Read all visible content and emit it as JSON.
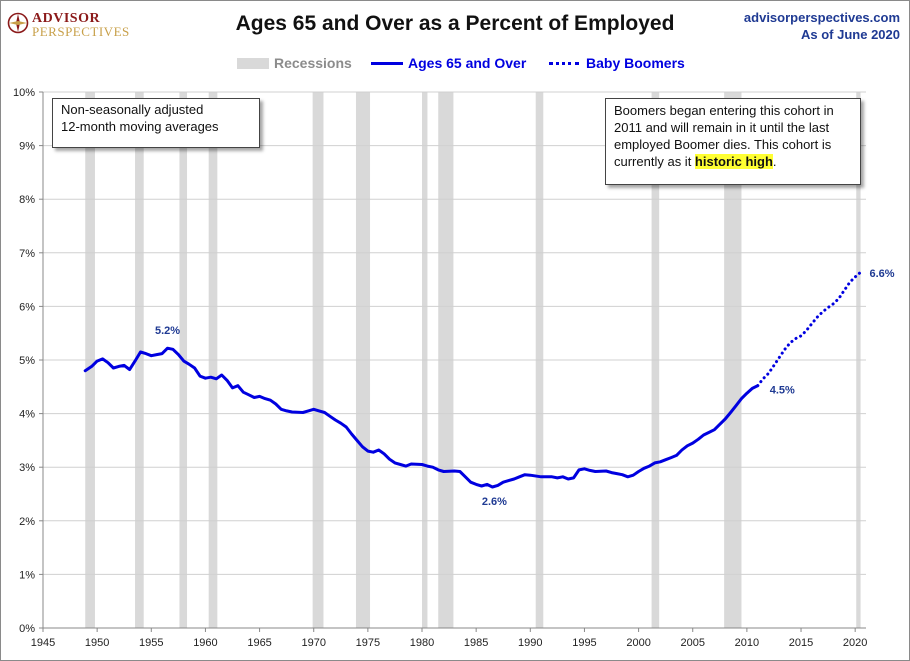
{
  "header": {
    "logo_top": "ADVISOR",
    "logo_bottom": "PERSPECTIVES",
    "title": "Ages 65 and Over as a Percent of Employed",
    "site": "advisorperspectives.com",
    "as_of": "As of June 2020"
  },
  "legend": {
    "recessions": "Recessions",
    "series_main": "Ages 65 and Over",
    "series_boomers": "Baby Boomers"
  },
  "notes": {
    "left_line1": "Non-seasonally adjusted",
    "left_line2": "12-month moving averages",
    "right_line1": "Boomers began entering this cohort in",
    "right_line2": "2011  and will remain in it until the last",
    "right_line3": "employed Boomer dies. This cohort is",
    "right_line4_prefix": "currently as it ",
    "right_line4_highlight": "historic high",
    "right_line4_suffix": "."
  },
  "colors": {
    "series": "#0000e0",
    "recession": "#d9d9d9",
    "grid": "#d0d0d0",
    "highlight": "#ffff33",
    "label": "#1f3a93"
  },
  "chart_data": {
    "type": "line",
    "xlim": [
      1945,
      2021
    ],
    "ylim": [
      0,
      10
    ],
    "x_ticks": [
      1945,
      1950,
      1955,
      1960,
      1965,
      1970,
      1975,
      1980,
      1985,
      1990,
      1995,
      2000,
      2005,
      2010,
      2015,
      2020
    ],
    "y_ticks": [
      "0%",
      "1%",
      "2%",
      "3%",
      "4%",
      "5%",
      "6%",
      "7%",
      "8%",
      "9%",
      "10%"
    ],
    "grid": true,
    "legend_position": "top-center",
    "recessions": [
      [
        1948.9,
        1949.8
      ],
      [
        1953.5,
        1954.3
      ],
      [
        1957.6,
        1958.3
      ],
      [
        1960.3,
        1961.1
      ],
      [
        1969.9,
        1970.9
      ],
      [
        1973.9,
        1975.2
      ],
      [
        1980.0,
        1980.5
      ],
      [
        1981.5,
        1982.9
      ],
      [
        1990.5,
        1991.2
      ],
      [
        2001.2,
        2001.9
      ],
      [
        2007.9,
        2009.5
      ],
      [
        2020.1,
        2020.5
      ]
    ],
    "series": [
      {
        "name": "Ages 65 and Over",
        "style": "solid",
        "points": [
          [
            1948.9,
            4.8
          ],
          [
            1949.5,
            4.88
          ],
          [
            1950.0,
            4.98
          ],
          [
            1950.5,
            5.02
          ],
          [
            1951.0,
            4.95
          ],
          [
            1951.5,
            4.85
          ],
          [
            1952.0,
            4.88
          ],
          [
            1952.5,
            4.9
          ],
          [
            1953.0,
            4.82
          ],
          [
            1953.5,
            4.98
          ],
          [
            1954.0,
            5.15
          ],
          [
            1954.5,
            5.12
          ],
          [
            1955.0,
            5.08
          ],
          [
            1955.5,
            5.1
          ],
          [
            1956.0,
            5.12
          ],
          [
            1956.5,
            5.22
          ],
          [
            1957.0,
            5.2
          ],
          [
            1957.5,
            5.1
          ],
          [
            1958.0,
            4.98
          ],
          [
            1958.5,
            4.92
          ],
          [
            1959.0,
            4.85
          ],
          [
            1959.5,
            4.7
          ],
          [
            1960.0,
            4.66
          ],
          [
            1960.5,
            4.68
          ],
          [
            1961.0,
            4.65
          ],
          [
            1961.5,
            4.72
          ],
          [
            1962.0,
            4.62
          ],
          [
            1962.5,
            4.48
          ],
          [
            1963.0,
            4.52
          ],
          [
            1963.5,
            4.4
          ],
          [
            1964.0,
            4.35
          ],
          [
            1964.5,
            4.3
          ],
          [
            1965.0,
            4.32
          ],
          [
            1965.5,
            4.28
          ],
          [
            1966.0,
            4.25
          ],
          [
            1966.5,
            4.18
          ],
          [
            1967.0,
            4.08
          ],
          [
            1967.5,
            4.05
          ],
          [
            1968.0,
            4.03
          ],
          [
            1969.0,
            4.02
          ],
          [
            1969.5,
            4.05
          ],
          [
            1970.0,
            4.08
          ],
          [
            1970.5,
            4.05
          ],
          [
            1971.0,
            4.02
          ],
          [
            1971.5,
            3.95
          ],
          [
            1972.0,
            3.88
          ],
          [
            1972.5,
            3.82
          ],
          [
            1973.0,
            3.75
          ],
          [
            1973.5,
            3.62
          ],
          [
            1974.0,
            3.5
          ],
          [
            1974.5,
            3.38
          ],
          [
            1975.0,
            3.3
          ],
          [
            1975.5,
            3.28
          ],
          [
            1976.0,
            3.32
          ],
          [
            1976.5,
            3.25
          ],
          [
            1977.0,
            3.15
          ],
          [
            1977.5,
            3.08
          ],
          [
            1978.0,
            3.05
          ],
          [
            1978.5,
            3.02
          ],
          [
            1979.0,
            3.06
          ],
          [
            1980.0,
            3.05
          ],
          [
            1980.5,
            3.02
          ],
          [
            1981.0,
            3.0
          ],
          [
            1981.5,
            2.95
          ],
          [
            1982.0,
            2.92
          ],
          [
            1983.0,
            2.93
          ],
          [
            1983.5,
            2.92
          ],
          [
            1984.0,
            2.82
          ],
          [
            1984.5,
            2.72
          ],
          [
            1985.0,
            2.68
          ],
          [
            1985.5,
            2.65
          ],
          [
            1986.0,
            2.68
          ],
          [
            1986.5,
            2.63
          ],
          [
            1987.0,
            2.66
          ],
          [
            1987.5,
            2.72
          ],
          [
            1988.0,
            2.75
          ],
          [
            1988.5,
            2.78
          ],
          [
            1989.0,
            2.82
          ],
          [
            1989.5,
            2.86
          ],
          [
            1990.0,
            2.85
          ],
          [
            1991.0,
            2.82
          ],
          [
            1992.0,
            2.82
          ],
          [
            1992.5,
            2.8
          ],
          [
            1993.0,
            2.82
          ],
          [
            1993.5,
            2.78
          ],
          [
            1994.0,
            2.8
          ],
          [
            1994.5,
            2.95
          ],
          [
            1995.0,
            2.97
          ],
          [
            1995.5,
            2.94
          ],
          [
            1996.0,
            2.92
          ],
          [
            1997.0,
            2.93
          ],
          [
            1997.5,
            2.9
          ],
          [
            1998.0,
            2.88
          ],
          [
            1998.5,
            2.86
          ],
          [
            1999.0,
            2.82
          ],
          [
            1999.5,
            2.85
          ],
          [
            2000.0,
            2.92
          ],
          [
            2000.5,
            2.98
          ],
          [
            2001.0,
            3.02
          ],
          [
            2001.5,
            3.08
          ],
          [
            2002.0,
            3.1
          ],
          [
            2002.5,
            3.14
          ],
          [
            2003.0,
            3.18
          ],
          [
            2003.5,
            3.22
          ],
          [
            2004.0,
            3.32
          ],
          [
            2004.5,
            3.4
          ],
          [
            2005.0,
            3.45
          ],
          [
            2005.5,
            3.52
          ],
          [
            2006.0,
            3.6
          ],
          [
            2006.5,
            3.65
          ],
          [
            2007.0,
            3.7
          ],
          [
            2007.5,
            3.8
          ],
          [
            2008.0,
            3.9
          ],
          [
            2008.5,
            4.02
          ],
          [
            2009.0,
            4.15
          ],
          [
            2009.5,
            4.28
          ],
          [
            2010.0,
            4.38
          ],
          [
            2010.5,
            4.47
          ],
          [
            2011.0,
            4.52
          ]
        ]
      },
      {
        "name": "Baby Boomers",
        "style": "dotted",
        "points": [
          [
            2011.0,
            4.52
          ],
          [
            2011.5,
            4.65
          ],
          [
            2012.0,
            4.75
          ],
          [
            2012.5,
            4.9
          ],
          [
            2013.0,
            5.05
          ],
          [
            2013.5,
            5.2
          ],
          [
            2014.0,
            5.32
          ],
          [
            2014.5,
            5.4
          ],
          [
            2015.0,
            5.45
          ],
          [
            2015.5,
            5.55
          ],
          [
            2016.0,
            5.68
          ],
          [
            2016.5,
            5.8
          ],
          [
            2017.0,
            5.9
          ],
          [
            2017.5,
            5.98
          ],
          [
            2018.0,
            6.05
          ],
          [
            2018.5,
            6.15
          ],
          [
            2019.0,
            6.3
          ],
          [
            2019.5,
            6.45
          ],
          [
            2020.0,
            6.55
          ],
          [
            2020.4,
            6.62
          ]
        ]
      }
    ],
    "annotations": [
      {
        "text": "5.2%",
        "x": 1956.5,
        "y": 5.22
      },
      {
        "text": "2.6%",
        "x": 1986.5,
        "y": 2.63
      },
      {
        "text": "4.5%",
        "x": 2011.0,
        "y": 4.52
      },
      {
        "text": "6.6%",
        "x": 2020.4,
        "y": 6.62
      }
    ]
  }
}
